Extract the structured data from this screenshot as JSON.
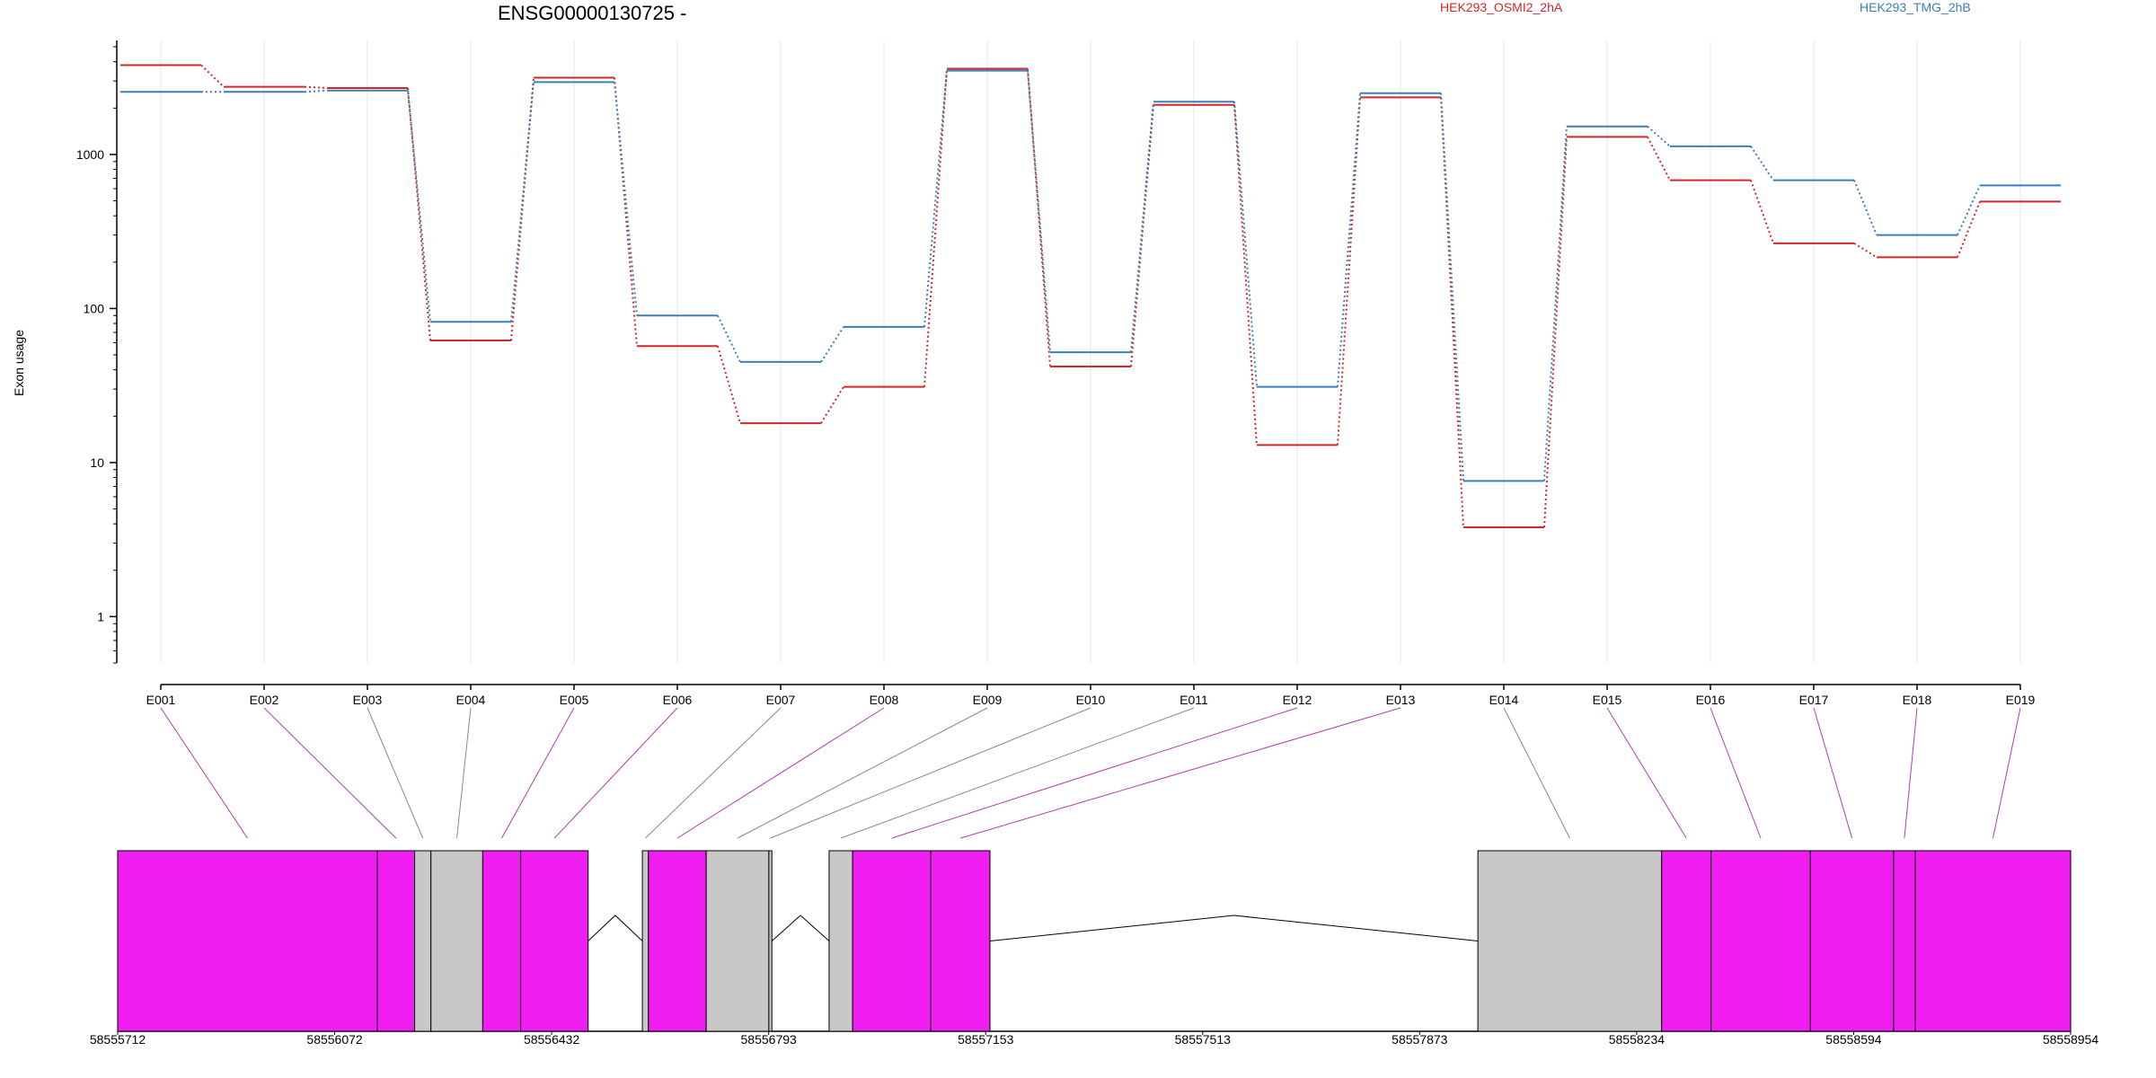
{
  "chart_data": {
    "type": "line",
    "title": "ENSG00000130725 -",
    "ylabel": "Exon usage",
    "xlabel": "",
    "y_scale": "log",
    "ylim": [
      0.5,
      5500
    ],
    "y_ticks": [
      1,
      10,
      100,
      1000
    ],
    "grid": "vertical",
    "legend_placement": "top",
    "categories": [
      "E001",
      "E002",
      "E003",
      "E004",
      "E005",
      "E006",
      "E007",
      "E008",
      "E009",
      "E010",
      "E011",
      "E012",
      "E013",
      "E014",
      "E015",
      "E016",
      "E017",
      "E018",
      "E019"
    ],
    "series": [
      {
        "name": "HEK293_OSMI2_2hA",
        "color": "#d62728",
        "values": [
          3800,
          2750,
          2700,
          62,
          3150,
          57,
          18,
          31,
          3600,
          42,
          2100,
          13,
          2350,
          3.8,
          1300,
          680,
          265,
          215,
          495
        ]
      },
      {
        "name": "HEK293_TMG_2hB",
        "color": "#3a7fb8",
        "values": [
          2550,
          2550,
          2600,
          82,
          2950,
          90,
          45,
          76,
          3500,
          52,
          2200,
          31,
          2500,
          7.6,
          1520,
          1130,
          680,
          300,
          630
        ]
      }
    ],
    "genome_axis_labels": [
      "58555712",
      "58556072",
      "58556432",
      "58556793",
      "58557153",
      "58557513",
      "58557873",
      "58558234",
      "58558594",
      "58558954"
    ],
    "gene_model": {
      "start": 58555712,
      "end": 58558954,
      "colors": {
        "significant": "#f01ef0",
        "not_significant": "#c8c8c8"
      },
      "exons": [
        {
          "id": "E001",
          "start": 58555712,
          "end": 58556143,
          "significant": true
        },
        {
          "id": "E002",
          "start": 58556143,
          "end": 58556205,
          "significant": true
        },
        {
          "id": "E003",
          "start": 58556205,
          "end": 58556232,
          "significant": false
        },
        {
          "id": "E004",
          "start": 58556232,
          "end": 58556318,
          "significant": false
        },
        {
          "id": "E005",
          "start": 58556318,
          "end": 58556381,
          "significant": true
        },
        {
          "id": "E006",
          "start": 58556381,
          "end": 58556493,
          "significant": true
        },
        {
          "id": "E007",
          "start": 58556583,
          "end": 58556593,
          "significant": false
        },
        {
          "id": "E008",
          "start": 58556593,
          "end": 58556689,
          "significant": true
        },
        {
          "id": "E009",
          "start": 58556689,
          "end": 58556793,
          "significant": false
        },
        {
          "id": "E010",
          "start": 58556793,
          "end": 58556798,
          "significant": false
        },
        {
          "id": "E011",
          "start": 58556893,
          "end": 58556932,
          "significant": false
        },
        {
          "id": "E012",
          "start": 58556932,
          "end": 58557062,
          "significant": true
        },
        {
          "id": "E013",
          "start": 58557062,
          "end": 58557160,
          "significant": true
        },
        {
          "id": "E014",
          "start": 58557970,
          "end": 58558275,
          "significant": false
        },
        {
          "id": "E015",
          "start": 58558275,
          "end": 58558357,
          "significant": true
        },
        {
          "id": "E016",
          "start": 58558357,
          "end": 58558522,
          "significant": true
        },
        {
          "id": "E017",
          "start": 58558522,
          "end": 58558660,
          "significant": true
        },
        {
          "id": "E018",
          "start": 58558660,
          "end": 58558696,
          "significant": true
        },
        {
          "id": "E019",
          "start": 58558696,
          "end": 58558954,
          "significant": true
        }
      ]
    }
  }
}
